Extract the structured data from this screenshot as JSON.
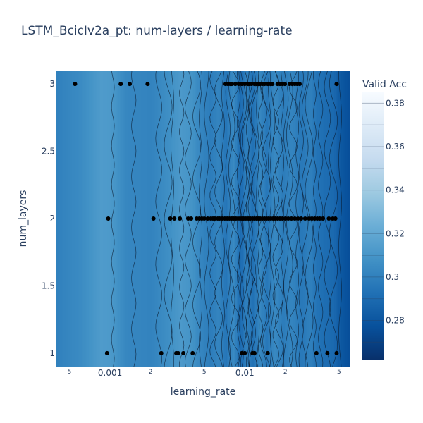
{
  "title": "LSTM_BcicIv2a_pt: num-layers / learning-rate",
  "chart_data": {
    "type": "contour",
    "title": "LSTM_BcicIv2a_pt: num-layers / learning-rate",
    "xlabel": "learning_rate",
    "ylabel": "num_layers",
    "x_scale": "log",
    "xlim": [
      0.0004,
      0.06
    ],
    "ylim": [
      0.9,
      3.1
    ],
    "x_ticks": [
      {
        "value": 0.0005,
        "label": "5",
        "minor": true
      },
      {
        "value": 0.001,
        "label": "0.001",
        "minor": false
      },
      {
        "value": 0.002,
        "label": "2",
        "minor": true
      },
      {
        "value": 0.005,
        "label": "5",
        "minor": true
      },
      {
        "value": 0.01,
        "label": "0.01",
        "minor": false
      },
      {
        "value": 0.02,
        "label": "2",
        "minor": true
      },
      {
        "value": 0.05,
        "label": "5",
        "minor": true
      }
    ],
    "y_ticks": [
      {
        "value": 1,
        "label": "1"
      },
      {
        "value": 1.5,
        "label": "1.5"
      },
      {
        "value": 2,
        "label": "2"
      },
      {
        "value": 2.5,
        "label": "2.5"
      },
      {
        "value": 3,
        "label": "3"
      }
    ],
    "colorbar": {
      "title": "Valid Acc",
      "range": [
        0.262,
        0.385
      ],
      "ticks": [
        {
          "value": 0.28,
          "label": "0.28"
        },
        {
          "value": 0.3,
          "label": "0.3"
        },
        {
          "value": 0.32,
          "label": "0.32"
        },
        {
          "value": 0.34,
          "label": "0.34"
        },
        {
          "value": 0.36,
          "label": "0.36"
        },
        {
          "value": 0.38,
          "label": "0.38"
        }
      ],
      "colorscale": [
        "#08306b",
        "#08519c",
        "#2171b5",
        "#4292c6",
        "#6baed6",
        "#9ecae1",
        "#c6dbef",
        "#deebf7",
        "#f7fbff"
      ]
    },
    "background_bands": [
      {
        "x": 0.0004,
        "value": 0.3
      },
      {
        "x": 0.0006,
        "value": 0.305
      },
      {
        "x": 0.00085,
        "value": 0.313
      },
      {
        "x": 0.001,
        "value": 0.312
      },
      {
        "x": 0.0013,
        "value": 0.303
      },
      {
        "x": 0.0016,
        "value": 0.302
      },
      {
        "x": 0.002,
        "value": 0.301
      },
      {
        "x": 0.0026,
        "value": 0.306
      },
      {
        "x": 0.0033,
        "value": 0.312
      },
      {
        "x": 0.004,
        "value": 0.309
      },
      {
        "x": 0.0047,
        "value": 0.302
      },
      {
        "x": 0.0055,
        "value": 0.298
      },
      {
        "x": 0.0063,
        "value": 0.302
      },
      {
        "x": 0.0072,
        "value": 0.295
      },
      {
        "x": 0.0082,
        "value": 0.305
      },
      {
        "x": 0.0092,
        "value": 0.29
      },
      {
        "x": 0.0102,
        "value": 0.3
      },
      {
        "x": 0.0114,
        "value": 0.293
      },
      {
        "x": 0.0128,
        "value": 0.303
      },
      {
        "x": 0.0145,
        "value": 0.296
      },
      {
        "x": 0.0165,
        "value": 0.304
      },
      {
        "x": 0.019,
        "value": 0.298
      },
      {
        "x": 0.022,
        "value": 0.302
      },
      {
        "x": 0.026,
        "value": 0.296
      },
      {
        "x": 0.03,
        "value": 0.3
      },
      {
        "x": 0.034,
        "value": 0.294
      },
      {
        "x": 0.039,
        "value": 0.291
      },
      {
        "x": 0.045,
        "value": 0.289
      },
      {
        "x": 0.052,
        "value": 0.28
      },
      {
        "x": 0.06,
        "value": 0.276
      }
    ],
    "contour_lines_x": [
      0.00105,
      0.0015,
      0.0023,
      0.0027,
      0.0029,
      0.0034,
      0.0038,
      0.0044,
      0.0047,
      0.0052,
      0.0058,
      0.0064,
      0.0069,
      0.0075,
      0.008,
      0.0085,
      0.009,
      0.0094,
      0.0098,
      0.0102,
      0.0105,
      0.011,
      0.0114,
      0.0119,
      0.0125,
      0.0131,
      0.0138,
      0.0145,
      0.0153,
      0.0161,
      0.017,
      0.018,
      0.019,
      0.0202,
      0.0215,
      0.0229,
      0.0245,
      0.0262,
      0.028,
      0.03,
      0.033,
      0.0365,
      0.041,
      0.0455,
      0.051
    ],
    "points": [
      {
        "x": 0.00055,
        "y": 3
      },
      {
        "x": 0.0012,
        "y": 3
      },
      {
        "x": 0.0014,
        "y": 3
      },
      {
        "x": 0.0019,
        "y": 3
      },
      {
        "x": 0.0072,
        "y": 3
      },
      {
        "x": 0.0075,
        "y": 3
      },
      {
        "x": 0.0078,
        "y": 3
      },
      {
        "x": 0.008,
        "y": 3
      },
      {
        "x": 0.0085,
        "y": 3
      },
      {
        "x": 0.009,
        "y": 3
      },
      {
        "x": 0.0095,
        "y": 3
      },
      {
        "x": 0.01,
        "y": 3
      },
      {
        "x": 0.0105,
        "y": 3
      },
      {
        "x": 0.0108,
        "y": 3
      },
      {
        "x": 0.0112,
        "y": 3
      },
      {
        "x": 0.0118,
        "y": 3
      },
      {
        "x": 0.0122,
        "y": 3
      },
      {
        "x": 0.0126,
        "y": 3
      },
      {
        "x": 0.013,
        "y": 3
      },
      {
        "x": 0.0135,
        "y": 3
      },
      {
        "x": 0.014,
        "y": 3
      },
      {
        "x": 0.0148,
        "y": 3
      },
      {
        "x": 0.0155,
        "y": 3
      },
      {
        "x": 0.016,
        "y": 3
      },
      {
        "x": 0.0175,
        "y": 3
      },
      {
        "x": 0.0182,
        "y": 3
      },
      {
        "x": 0.019,
        "y": 3
      },
      {
        "x": 0.0198,
        "y": 3
      },
      {
        "x": 0.0215,
        "y": 3
      },
      {
        "x": 0.0225,
        "y": 3
      },
      {
        "x": 0.0235,
        "y": 3
      },
      {
        "x": 0.0245,
        "y": 3
      },
      {
        "x": 0.0255,
        "y": 3
      },
      {
        "x": 0.048,
        "y": 3
      },
      {
        "x": 0.00097,
        "y": 2
      },
      {
        "x": 0.0021,
        "y": 2
      },
      {
        "x": 0.0028,
        "y": 2
      },
      {
        "x": 0.003,
        "y": 2
      },
      {
        "x": 0.0033,
        "y": 2
      },
      {
        "x": 0.0038,
        "y": 2
      },
      {
        "x": 0.004,
        "y": 2
      },
      {
        "x": 0.0044,
        "y": 2
      },
      {
        "x": 0.0046,
        "y": 2
      },
      {
        "x": 0.0048,
        "y": 2
      },
      {
        "x": 0.005,
        "y": 2
      },
      {
        "x": 0.0053,
        "y": 2
      },
      {
        "x": 0.0056,
        "y": 2
      },
      {
        "x": 0.0058,
        "y": 2
      },
      {
        "x": 0.006,
        "y": 2
      },
      {
        "x": 0.0063,
        "y": 2
      },
      {
        "x": 0.0065,
        "y": 2
      },
      {
        "x": 0.0068,
        "y": 2
      },
      {
        "x": 0.0071,
        "y": 2
      },
      {
        "x": 0.0074,
        "y": 2
      },
      {
        "x": 0.0077,
        "y": 2
      },
      {
        "x": 0.008,
        "y": 2
      },
      {
        "x": 0.0083,
        "y": 2
      },
      {
        "x": 0.0086,
        "y": 2
      },
      {
        "x": 0.0089,
        "y": 2
      },
      {
        "x": 0.0092,
        "y": 2
      },
      {
        "x": 0.0095,
        "y": 2
      },
      {
        "x": 0.0098,
        "y": 2
      },
      {
        "x": 0.0101,
        "y": 2
      },
      {
        "x": 0.0104,
        "y": 2
      },
      {
        "x": 0.0107,
        "y": 2
      },
      {
        "x": 0.011,
        "y": 2
      },
      {
        "x": 0.0114,
        "y": 2
      },
      {
        "x": 0.0118,
        "y": 2
      },
      {
        "x": 0.0122,
        "y": 2
      },
      {
        "x": 0.0126,
        "y": 2
      },
      {
        "x": 0.013,
        "y": 2
      },
      {
        "x": 0.0135,
        "y": 2
      },
      {
        "x": 0.014,
        "y": 2
      },
      {
        "x": 0.0145,
        "y": 2
      },
      {
        "x": 0.015,
        "y": 2
      },
      {
        "x": 0.0156,
        "y": 2
      },
      {
        "x": 0.0162,
        "y": 2
      },
      {
        "x": 0.0168,
        "y": 2
      },
      {
        "x": 0.0175,
        "y": 2
      },
      {
        "x": 0.0182,
        "y": 2
      },
      {
        "x": 0.019,
        "y": 2
      },
      {
        "x": 0.02,
        "y": 2
      },
      {
        "x": 0.021,
        "y": 2
      },
      {
        "x": 0.0222,
        "y": 2
      },
      {
        "x": 0.0235,
        "y": 2
      },
      {
        "x": 0.0248,
        "y": 2
      },
      {
        "x": 0.0262,
        "y": 2
      },
      {
        "x": 0.028,
        "y": 2
      },
      {
        "x": 0.03,
        "y": 2
      },
      {
        "x": 0.0315,
        "y": 2
      },
      {
        "x": 0.033,
        "y": 2
      },
      {
        "x": 0.0345,
        "y": 2
      },
      {
        "x": 0.036,
        "y": 2
      },
      {
        "x": 0.038,
        "y": 2
      },
      {
        "x": 0.042,
        "y": 2
      },
      {
        "x": 0.045,
        "y": 2
      },
      {
        "x": 0.047,
        "y": 2
      },
      {
        "x": 0.00095,
        "y": 1
      },
      {
        "x": 0.0024,
        "y": 1
      },
      {
        "x": 0.0031,
        "y": 1
      },
      {
        "x": 0.0032,
        "y": 1
      },
      {
        "x": 0.0035,
        "y": 1
      },
      {
        "x": 0.0041,
        "y": 1
      },
      {
        "x": 0.0095,
        "y": 1
      },
      {
        "x": 0.01,
        "y": 1
      },
      {
        "x": 0.0114,
        "y": 1
      },
      {
        "x": 0.0118,
        "y": 1
      },
      {
        "x": 0.0148,
        "y": 1
      },
      {
        "x": 0.034,
        "y": 1
      },
      {
        "x": 0.041,
        "y": 1
      },
      {
        "x": 0.048,
        "y": 1
      }
    ]
  }
}
